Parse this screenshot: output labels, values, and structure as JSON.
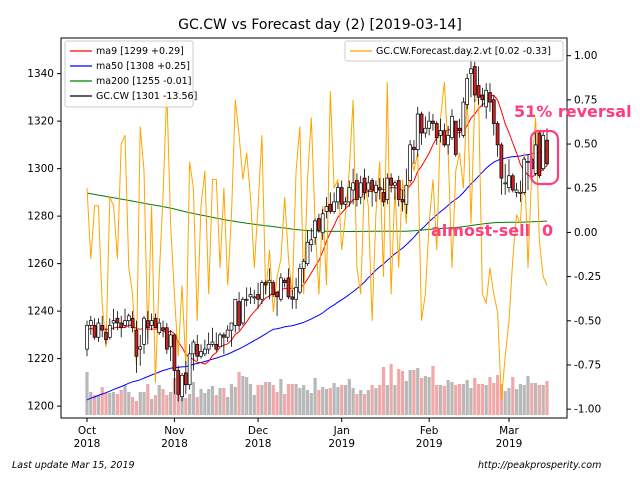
{
  "chart_data": {
    "type": "candlestick-overlay",
    "title": "GC.CW vs Forecast day (2)  [2019-03-14]",
    "x_ticks": [
      {
        "line1": "Oct",
        "line2": "2018"
      },
      {
        "line1": "Nov",
        "line2": "2018"
      },
      {
        "line1": "Dec",
        "line2": "2018"
      },
      {
        "line1": "Jan",
        "line2": "2019"
      },
      {
        "line1": "Feb",
        "line2": "2019"
      },
      {
        "line1": "Mar",
        "line2": "2019"
      }
    ],
    "y_left": {
      "lim": [
        1195,
        1355
      ],
      "ticks": [
        1200,
        1220,
        1240,
        1260,
        1280,
        1300,
        1320,
        1340
      ]
    },
    "y_right": {
      "lim": [
        -1.05,
        1.1
      ],
      "ticks": [
        "1.00",
        "0.75",
        "0.50",
        "0.25",
        "0.00",
        "-0.25",
        "-0.50",
        "-0.75",
        "-1.00"
      ],
      "tick_values": [
        1,
        0.75,
        0.5,
        0.25,
        0,
        -0.25,
        -0.5,
        -0.75,
        -1
      ]
    },
    "legend_left": [
      {
        "label": "ma9 [1299 +0.29]",
        "color": "#ff0000"
      },
      {
        "label": "ma50 [1308 +0.25]",
        "color": "#0000ff"
      },
      {
        "label": "ma200 [1255 -0.01]",
        "color": "#008000"
      },
      {
        "label": "GC.CW [1301 -13.56]",
        "color": "#000000"
      }
    ],
    "legend_right": [
      {
        "label": "GC.CW.Forecast.day.2.vt [0.02 -0.33]",
        "color": "#ffa500"
      }
    ],
    "annotations": {
      "reversal": "51% reversal",
      "sell": "almost-sell",
      "zero": "0"
    },
    "colors": {
      "up": "#ffffff",
      "down": "#cc2222",
      "wick": "#000000",
      "volume": "#b8b8b8",
      "volume_down": "#f0a8a8",
      "ma9": "#ff0000",
      "ma50": "#0000ff",
      "ma200": "#008000",
      "forecast": "#ffa500",
      "annot": "#ff3d7f"
    },
    "candles": [
      [
        1224,
        1234,
        1221,
        1236,
        0.25
      ],
      [
        1234,
        1236,
        1230,
        1238,
        -0.15
      ],
      [
        1234,
        1229,
        1228,
        1237,
        0.15
      ],
      [
        1229,
        1235,
        1227,
        1237,
        0.15
      ],
      [
        1234,
        1232,
        1229,
        1238,
        -0.4
      ],
      [
        1231,
        1228,
        1226,
        1233,
        -0.65
      ],
      [
        1229,
        1234,
        1228,
        1237,
        0.2
      ],
      [
        1235,
        1236,
        1232,
        1241,
        0.15
      ],
      [
        1237,
        1235,
        1232,
        1240,
        -0.15
      ],
      [
        1235,
        1233,
        1229,
        1238,
        0.5
      ],
      [
        1234,
        1236,
        1233,
        1241,
        0.55
      ],
      [
        1236,
        1238,
        1233,
        1239,
        -0.2
      ],
      [
        1237,
        1233,
        1231,
        1240,
        -0.35
      ],
      [
        1232,
        1221,
        1214,
        1236,
        -0.75
      ],
      [
        1224,
        1225,
        1217,
        1230,
        0.6
      ],
      [
        1226,
        1237,
        1222,
        1238,
        0.35
      ],
      [
        1236,
        1233,
        1226,
        1240,
        -0.6
      ],
      [
        1234,
        1236,
        1232,
        1239,
        0.15
      ],
      [
        1237,
        1233,
        1233,
        1239,
        -0.85
      ],
      [
        1231,
        1235,
        1230,
        1237,
        -0.25
      ],
      [
        1233,
        1232,
        1229,
        1236,
        0.2
      ],
      [
        1233,
        1224,
        1222,
        1235,
        0.8
      ],
      [
        1225,
        1230,
        1219,
        1232,
        0.05
      ],
      [
        1230,
        1215,
        1205,
        1230,
        -0.35
      ],
      [
        1215,
        1205,
        1202,
        1217,
        -0.7
      ],
      [
        1204,
        1213,
        1202,
        1214,
        -0.3
      ],
      [
        1214,
        1209,
        1205,
        1219,
        -0.75
      ],
      [
        1209,
        1222,
        1207,
        1226,
        0.4
      ],
      [
        1222,
        1227,
        1215,
        1228,
        0.25
      ],
      [
        1226,
        1221,
        1219,
        1230,
        -0.5
      ],
      [
        1221,
        1223,
        1220,
        1226,
        0.15
      ],
      [
        1222,
        1224,
        1221,
        1228,
        0.35
      ],
      [
        1224,
        1226,
        1222,
        1231,
        -0.35
      ],
      [
        1226,
        1227,
        1225,
        1233,
        0.3
      ],
      [
        1226,
        1224,
        1223,
        1231,
        0.3
      ],
      [
        1225,
        1230,
        1225,
        1231,
        -0.2
      ],
      [
        1230,
        1229,
        1222,
        1231,
        0.25
      ],
      [
        1229,
        1232,
        1227,
        1234,
        -0.3
      ],
      [
        1232,
        1235,
        1225,
        1235,
        0.1
      ],
      [
        1234,
        1245,
        1231,
        1245,
        0.75
      ],
      [
        1244,
        1234,
        1232,
        1248,
        0.55
      ],
      [
        1235,
        1245,
        1234,
        1246,
        0.3
      ],
      [
        1245,
        1245,
        1242,
        1250,
        0.45
      ],
      [
        1246,
        1247,
        1243,
        1250,
        0.2
      ],
      [
        1246,
        1246,
        1243,
        1249,
        -0.2
      ],
      [
        1247,
        1245,
        1241,
        1252,
        0.15
      ],
      [
        1245,
        1252,
        1243,
        1253,
        0.55
      ],
      [
        1252,
        1251,
        1247,
        1253,
        -0.35
      ],
      [
        1252,
        1253,
        1245,
        1258,
        -0.1
      ],
      [
        1252,
        1247,
        1246,
        1253,
        -0.45
      ],
      [
        1248,
        1246,
        1238,
        1248,
        -0.25
      ],
      [
        1245,
        1254,
        1244,
        1256,
        -0.15
      ],
      [
        1253,
        1252,
        1250,
        1254,
        0.2
      ],
      [
        1254,
        1246,
        1245,
        1258,
        -0.15
      ],
      [
        1246,
        1245,
        1241,
        1249,
        -0.35
      ],
      [
        1245,
        1250,
        1241,
        1254,
        0.35
      ],
      [
        1248,
        1258,
        1247,
        1260,
        0.6
      ],
      [
        1258,
        1261,
        1252,
        1262,
        -0.35
      ],
      [
        1260,
        1269,
        1259,
        1274,
        0.3
      ],
      [
        1268,
        1270,
        1265,
        1275,
        0.65
      ],
      [
        1271,
        1278,
        1268,
        1279,
        0.05
      ],
      [
        1279,
        1274,
        1273,
        1281,
        -0.35
      ],
      [
        1273,
        1281,
        1270,
        1283,
        0.15
      ],
      [
        1282,
        1284,
        1279,
        1288,
        -0.3
      ],
      [
        1285,
        1282,
        1281,
        1290,
        0.8
      ],
      [
        1282,
        1286,
        1281,
        1290,
        0.25
      ],
      [
        1286,
        1292,
        1283,
        1294,
        0.3
      ],
      [
        1292,
        1285,
        1283,
        1295,
        -0.1
      ],
      [
        1285,
        1286,
        1283,
        1288,
        0.1
      ],
      [
        1286,
        1292,
        1284,
        1295,
        0.35
      ],
      [
        1291,
        1294,
        1285,
        1300,
        0.75
      ],
      [
        1295,
        1287,
        1284,
        1298,
        -0.2
      ],
      [
        1288,
        1294,
        1285,
        1297,
        -0.35
      ],
      [
        1296,
        1290,
        1287,
        1300,
        0.3
      ],
      [
        1291,
        1294,
        1288,
        1297,
        0.15
      ],
      [
        1295,
        1291,
        1284,
        1296,
        -0.5
      ],
      [
        1290,
        1293,
        1286,
        1295,
        0.1
      ],
      [
        1292,
        1291,
        1287,
        1296,
        0.4
      ],
      [
        1290,
        1286,
        1284,
        1296,
        -0.25
      ],
      [
        1287,
        1296,
        1285,
        1298,
        0.85
      ],
      [
        1296,
        1293,
        1290,
        1298,
        -0.35
      ],
      [
        1293,
        1294,
        1287,
        1295,
        0.25
      ],
      [
        1295,
        1287,
        1284,
        1297,
        -0.2
      ],
      [
        1287,
        1286,
        1282,
        1291,
        0.3
      ],
      [
        1285,
        1293,
        1281,
        1300,
        0.05
      ],
      [
        1295,
        1310,
        1294,
        1312,
        0.45
      ],
      [
        1309,
        1308,
        1302,
        1312,
        0.35
      ],
      [
        1308,
        1323,
        1305,
        1326,
        0.45
      ],
      [
        1323,
        1315,
        1310,
        1324,
        -0.5
      ],
      [
        1315,
        1317,
        1313,
        1322,
        -0.35
      ],
      [
        1317,
        1320,
        1314,
        1324,
        0.05
      ],
      [
        1320,
        1319,
        1316,
        1323,
        0.3
      ],
      [
        1319,
        1313,
        1310,
        1320,
        -0.1
      ],
      [
        1314,
        1316,
        1311,
        1321,
        0.65
      ],
      [
        1316,
        1310,
        1309,
        1319,
        0.85
      ],
      [
        1310,
        1314,
        1306,
        1318,
        0.45
      ],
      [
        1313,
        1322,
        1312,
        1325,
        -0.2
      ],
      [
        1320,
        1306,
        1305,
        1320,
        0.35
      ],
      [
        1317,
        1316,
        1313,
        1321,
        0.45
      ],
      [
        1314,
        1328,
        1313,
        1330,
        0.25
      ],
      [
        1327,
        1338,
        1325,
        1340,
        0.8
      ],
      [
        1340,
        1342,
        1330,
        1351,
        0.05
      ],
      [
        1343,
        1331,
        1328,
        1345,
        0.75
      ],
      [
        1335,
        1330,
        1327,
        1343,
        0.75
      ],
      [
        1331,
        1329,
        1326,
        1334,
        -0.35
      ],
      [
        1326,
        1333,
        1321,
        1336,
        -0.4
      ],
      [
        1332,
        1328,
        1324,
        1336,
        -0.2
      ],
      [
        1329,
        1319,
        1314,
        1331,
        -0.35
      ],
      [
        1319,
        1310,
        1305,
        1320,
        -0.45
      ],
      [
        1310,
        1296,
        1289,
        1311,
        -0.95
      ],
      [
        1294,
        1294,
        1289,
        1302,
        -0.7
      ],
      [
        1292,
        1297,
        1290,
        1304,
        -0.5
      ],
      [
        1297,
        1291,
        1290,
        1298,
        -0.15
      ],
      [
        1290,
        1291,
        1288,
        1294,
        0.1
      ],
      [
        1290,
        1290,
        1286,
        1295,
        0.05
      ],
      [
        1290,
        1304,
        1289,
        1305,
        0.45
      ],
      [
        1303,
        1303,
        1291,
        1306,
        -0.2
      ],
      [
        1304,
        1300,
        1296,
        1305,
        0.35
      ],
      [
        1298,
        1310,
        1297,
        1315,
        0.65
      ],
      [
        1315,
        1297,
        1296,
        1316,
        -0.05
      ],
      [
        1300,
        1314,
        1299,
        1316,
        -0.25
      ],
      [
        1312,
        1302,
        1301,
        1317,
        -0.3
      ]
    ],
    "volume": [
      0.43,
      0.23,
      0.2,
      0.2,
      0.28,
      0.22,
      0.22,
      0.23,
      0.21,
      0.25,
      0.3,
      0.23,
      0.18,
      0.14,
      0.23,
      0.23,
      0.31,
      0.16,
      0.2,
      0.3,
      0.26,
      0.2,
      0.23,
      0.37,
      0.23,
      0.29,
      0.17,
      0.21,
      0.33,
      0.18,
      0.26,
      0.22,
      0.26,
      0.29,
      0.2,
      0.27,
      0.27,
      0.18,
      0.31,
      0.28,
      0.43,
      0.39,
      0.38,
      0.31,
      0.2,
      0.3,
      0.3,
      0.33,
      0.33,
      0.3,
      0.23,
      0.36,
      0.21,
      0.31,
      0.31,
      0.31,
      0.27,
      0.3,
      0.25,
      0.22,
      0.37,
      0.25,
      0.28,
      0.26,
      0.27,
      0.32,
      0.28,
      0.3,
      0.3,
      0.36,
      0.27,
      0.21,
      0.25,
      0.21,
      0.25,
      0.3,
      0.27,
      0.3,
      0.48,
      0.3,
      0.51,
      0.3,
      0.46,
      0.44,
      0.34,
      0.45,
      0.45,
      0.47,
      0.37,
      0.39,
      0.38,
      0.49,
      0.3,
      0.3,
      0.29,
      0.35,
      0.33,
      0.3,
      0.31,
      0.31,
      0.35,
      0.27,
      0.37,
      0.31,
      0.31,
      0.3,
      0.38,
      0.32,
      0.4,
      0.31,
      0.24,
      0.27,
      0.38,
      0.26,
      0.31,
      0.3,
      0.39,
      0.32,
      0.32,
      0.3,
      0.3,
      0.34
    ]
  }
}
